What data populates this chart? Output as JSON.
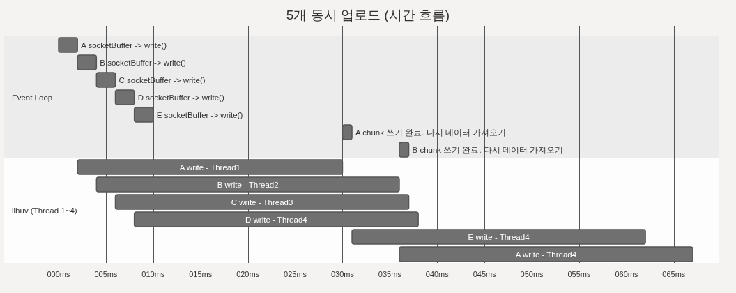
{
  "chart_data": {
    "type": "bar",
    "orientation": "horizontal",
    "title": "5개 동시 업로드 (시간 흐름)",
    "categories": [
      "A socketBuffer -> write()",
      "B socketBuffer -> write()",
      "C socketBuffer -> write()",
      "D socketBuffer -> write()",
      "E socketBuffer -> write()",
      "A chunk 쓰기 완료. 다시 데이터 가져오기",
      "B chunk 쓰기 완료. 다시 데이터 가져오기",
      "A write - Thread1",
      "B write - Thread2",
      "C write - Thread3",
      "D write - Thread4",
      "E write - Thread4",
      "A write - Thread4"
    ],
    "base": [
      0,
      2,
      4,
      6,
      8,
      30,
      36,
      2,
      4,
      6,
      8,
      31,
      36
    ],
    "values": [
      2,
      2,
      2,
      2,
      2,
      1,
      1,
      28,
      32,
      31,
      30,
      31,
      31
    ],
    "color": "#707070",
    "bands": [
      {
        "axis": "y",
        "from": "A socketBuffer -> write()",
        "to": "B chunk 쓰기 완료. 다시 데이터 가져오기",
        "label": "Event Loop",
        "color": "#ececec"
      },
      {
        "axis": "y",
        "from": "A write - Thread1",
        "to": "A write - Thread4",
        "label": "libuv (Thread 1~4)",
        "color": "#fdfdfd"
      }
    ],
    "xlim": [
      0,
      67
    ],
    "xticks": [
      {
        "value": 0,
        "label": "000ms"
      },
      {
        "value": 5,
        "label": "005ms"
      },
      {
        "value": 10,
        "label": "010ms"
      },
      {
        "value": 15,
        "label": "015ms"
      },
      {
        "value": 20,
        "label": "020ms"
      },
      {
        "value": 25,
        "label": "025ms"
      },
      {
        "value": 30,
        "label": "030ms"
      },
      {
        "value": 35,
        "label": "035ms"
      },
      {
        "value": 40,
        "label": "040ms"
      },
      {
        "value": 45,
        "label": "045ms"
      },
      {
        "value": 50,
        "label": "050ms"
      },
      {
        "value": 55,
        "label": "055ms"
      },
      {
        "value": 60,
        "label": "060ms"
      },
      {
        "value": 65,
        "label": "065ms"
      }
    ],
    "grid": "x",
    "tick_labels": "x"
  }
}
